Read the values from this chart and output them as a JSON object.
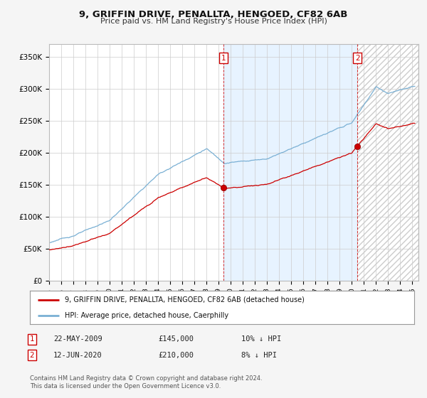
{
  "title": "9, GRIFFIN DRIVE, PENALLTA, HENGOED, CF82 6AB",
  "subtitle": "Price paid vs. HM Land Registry's House Price Index (HPI)",
  "ylabel_ticks": [
    "£0",
    "£50K",
    "£100K",
    "£150K",
    "£200K",
    "£250K",
    "£300K",
    "£350K"
  ],
  "ytick_values": [
    0,
    50000,
    100000,
    150000,
    200000,
    250000,
    300000,
    350000
  ],
  "ylim": [
    0,
    370000
  ],
  "xlim_start": 1995.0,
  "xlim_end": 2025.5,
  "sale1_x": 2009.38,
  "sale1_y": 145000,
  "sale2_x": 2020.45,
  "sale2_y": 210000,
  "hpi_color": "#7ab0d4",
  "price_color": "#cc0000",
  "shade_color": "#ddeeff",
  "legend_house": "9, GRIFFIN DRIVE, PENALLTA, HENGOED, CF82 6AB (detached house)",
  "legend_hpi": "HPI: Average price, detached house, Caerphilly",
  "table_rows": [
    {
      "num": "1",
      "date": "22-MAY-2009",
      "price": "£145,000",
      "note": "10% ↓ HPI"
    },
    {
      "num": "2",
      "date": "12-JUN-2020",
      "price": "£210,000",
      "note": "8% ↓ HPI"
    }
  ],
  "footnote": "Contains HM Land Registry data © Crown copyright and database right 2024.\nThis data is licensed under the Open Government Licence v3.0.",
  "bg_color": "#f5f5f5",
  "plot_bg": "#ffffff"
}
